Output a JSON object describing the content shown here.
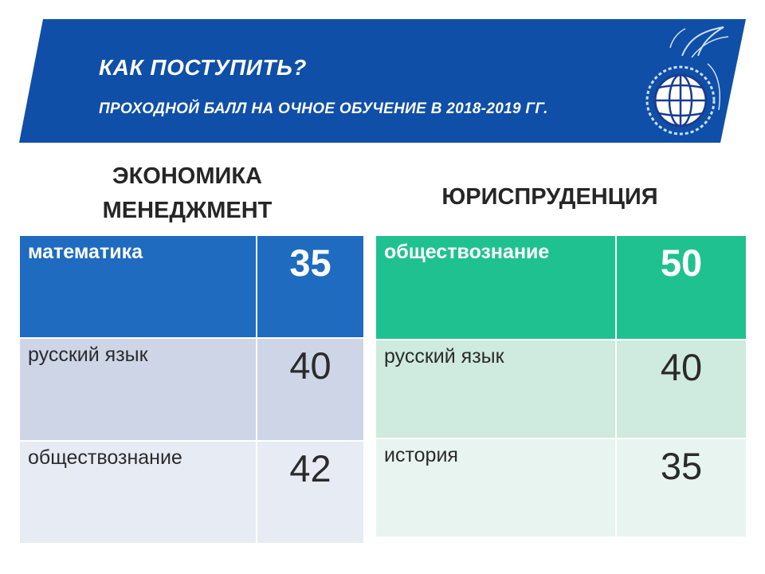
{
  "banner": {
    "title": "КАК ПОСТУПИТЬ?",
    "subtitle": "ПРОХОДНОЙ БАЛЛ НА ОЧНОЕ ОБУЧЕНИЕ В 2018-2019 ГГ.",
    "color": "#0f4fa8",
    "logo_icon": "globe-emblem-icon"
  },
  "left": {
    "heading_line1": "ЭКОНОМИКА",
    "heading_line2": "МЕНЕДЖМЕНТ",
    "rows": [
      {
        "subject": "математика",
        "score": "35"
      },
      {
        "subject": "русский язык",
        "score": "40"
      },
      {
        "subject": "обществознание",
        "score": "42"
      }
    ],
    "accent": "#1e6bbf"
  },
  "right": {
    "heading": "ЮРИСПРУДЕНЦИЯ",
    "rows": [
      {
        "subject": "обществознание",
        "score": "50"
      },
      {
        "subject": "русский язык",
        "score": "40"
      },
      {
        "subject": "история",
        "score": "35"
      }
    ],
    "accent": "#20c190"
  }
}
